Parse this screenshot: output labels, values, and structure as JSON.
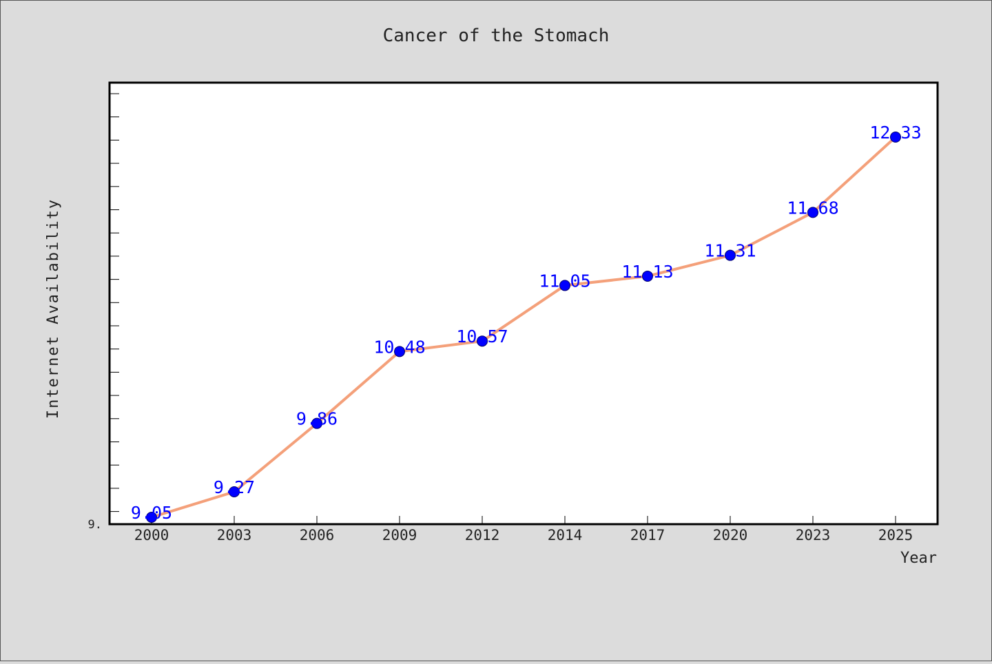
{
  "chart_data": {
    "type": "line",
    "title": "Cancer of the Stomach",
    "xlabel": "Year",
    "ylabel": "Internet Availability",
    "categories": [
      "2000",
      "2003",
      "2006",
      "2009",
      "2012",
      "2014",
      "2017",
      "2020",
      "2023",
      "2025"
    ],
    "series": [
      {
        "values": [
          9.05,
          9.27,
          9.86,
          10.48,
          10.57,
          11.05,
          11.13,
          11.31,
          11.68,
          12.33
        ]
      }
    ],
    "data_labels": [
      "9.05",
      "9.27",
      "9.86",
      "10.48",
      "10.57",
      "11.05",
      "11.13",
      "11.31",
      "11.68",
      "12.33"
    ],
    "ytick_label": "9.",
    "ylim": [
      9.0,
      12.8
    ],
    "grid": false,
    "colors": {
      "page_background": "#dcdcdc",
      "plot_background": "#ffffff",
      "line": "#f4a07a",
      "marker": "#0000ff",
      "data_label": "#0000ff",
      "text": "#222222"
    }
  }
}
